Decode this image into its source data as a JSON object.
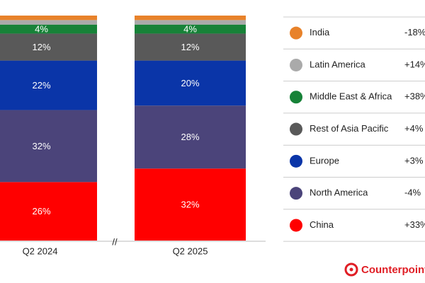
{
  "chart_data": {
    "type": "stacked_bar",
    "categories": [
      "Q2 2024",
      "Q2 2025"
    ],
    "axis_break": "//",
    "ylim": [
      0,
      100
    ],
    "series": [
      {
        "name": "India",
        "color": "#e8822a",
        "values": [
          2,
          2
        ],
        "value_labels": [
          null,
          null
        ],
        "growth": "-18%"
      },
      {
        "name": "Latin America",
        "color": "#aaaaaa",
        "values": [
          2,
          2
        ],
        "value_labels": [
          null,
          null
        ],
        "growth": "+14%"
      },
      {
        "name": "Middle East & Africa",
        "color": "#178238",
        "values": [
          4,
          4
        ],
        "value_labels": [
          "4%",
          "4%"
        ],
        "growth": "+38%"
      },
      {
        "name": "Rest of Asia Pacific",
        "color": "#595959",
        "values": [
          12,
          12
        ],
        "value_labels": [
          "12%",
          "12%"
        ],
        "growth": "+4%"
      },
      {
        "name": "Europe",
        "color": "#0a35a8",
        "values": [
          22,
          20
        ],
        "value_labels": [
          "22%",
          "20%"
        ],
        "growth": "+3%"
      },
      {
        "name": "North America",
        "color": "#4b447a",
        "values": [
          32,
          28
        ],
        "value_labels": [
          "32%",
          "28%"
        ],
        "growth": "-4%"
      },
      {
        "name": "China",
        "color": "#ff0000",
        "values": [
          26,
          32
        ],
        "value_labels": [
          "26%",
          "32%"
        ],
        "growth": "+33%"
      }
    ],
    "source": "Counterpoint"
  }
}
